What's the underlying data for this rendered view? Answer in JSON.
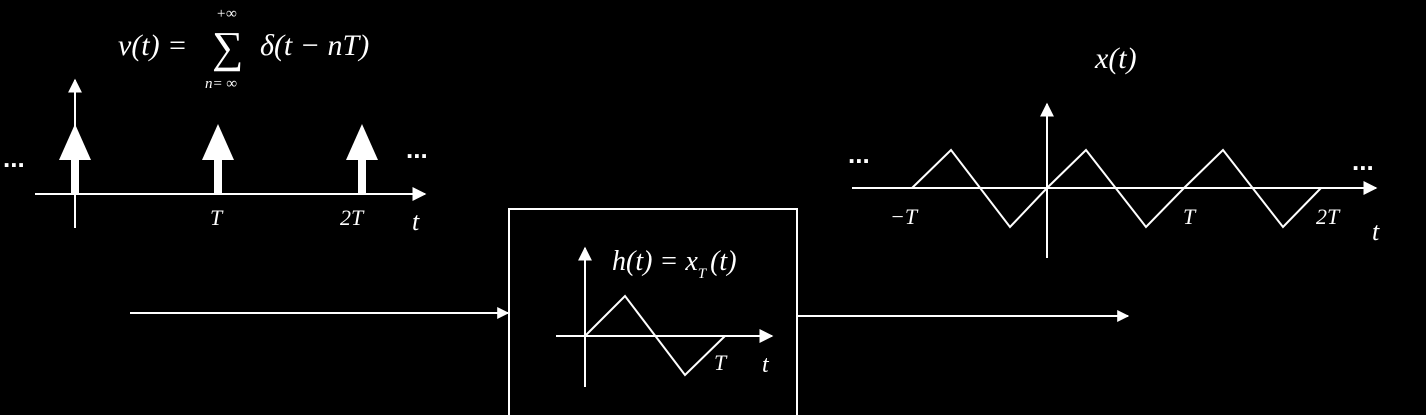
{
  "impulse_train": {
    "formula": {
      "lhs": "v(t) = ",
      "sum_symbol": "∑",
      "sum_upper": "+∞",
      "sum_lower": "n=  ∞",
      "rhs": "δ(t − nT)"
    },
    "tick_labels": [
      "T",
      "2T"
    ],
    "axis_label": "t",
    "ellipsis": "..."
  },
  "system_block": {
    "label": "h(t) = x",
    "label_sub": "T",
    "label_tail": "(t)",
    "tick_label": "T",
    "axis_label": "t"
  },
  "output_signal": {
    "label": "x(t)",
    "tick_labels": [
      "−T",
      "T",
      "2T"
    ],
    "axis_label": "t",
    "ellipsis": "..."
  },
  "colors": {
    "background": "#000000",
    "foreground": "#ffffff"
  }
}
